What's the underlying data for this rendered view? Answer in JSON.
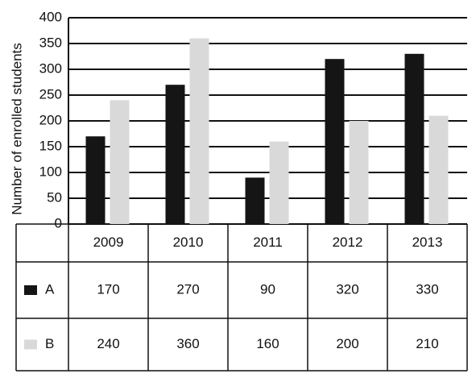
{
  "chart_data": {
    "type": "bar",
    "y_label": "Number of enrolled students",
    "categories": [
      "2009",
      "2010",
      "2011",
      "2012",
      "2013"
    ],
    "series": [
      {
        "name": "A",
        "color": "#151515",
        "values": [
          170,
          270,
          90,
          320,
          330
        ]
      },
      {
        "name": "B",
        "color": "#d9d9d9",
        "values": [
          240,
          360,
          160,
          200,
          210
        ]
      }
    ],
    "ylim": [
      0,
      400
    ],
    "yticks": [
      0,
      50,
      100,
      150,
      200,
      250,
      300,
      350,
      400
    ],
    "grid": true
  }
}
